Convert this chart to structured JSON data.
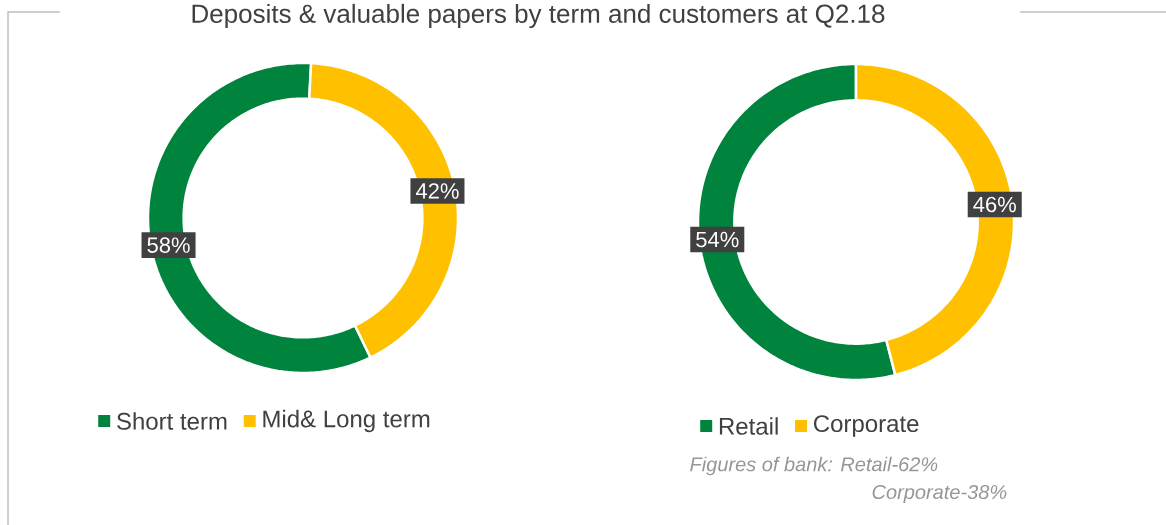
{
  "chart_data": [
    {
      "type": "donut",
      "title": "Deposits & valuable papers by term and customers at Q2.18",
      "categories": [
        "Short term",
        "Mid& Long term"
      ],
      "values": [
        58,
        42
      ],
      "colors": [
        "#00843d",
        "#ffc000"
      ],
      "value_labels": [
        "58%",
        "42%"
      ],
      "legend": "bottom"
    },
    {
      "type": "donut",
      "categories": [
        "Retail",
        "Corporate"
      ],
      "values": [
        54,
        46
      ],
      "colors": [
        "#00843d",
        "#ffc000"
      ],
      "value_labels": [
        "54%",
        "46%"
      ],
      "legend": "bottom",
      "annotations": [
        "Figures of bank: Retail-62%",
        "Corporate-38%"
      ]
    }
  ]
}
